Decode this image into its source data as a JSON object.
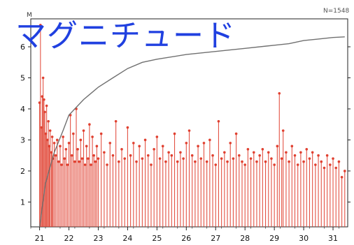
{
  "overlay_title": "マグニチュード",
  "chart_data": {
    "type": "bar",
    "n_label": "N=1548",
    "y_axis_label": "M",
    "xlim": [
      20.7,
      31.5
    ],
    "ylim": [
      0.2,
      6.9
    ],
    "x_ticks": [
      "21",
      "22",
      "23",
      "24",
      "25",
      "26",
      "27",
      "28",
      "29",
      "30",
      "31"
    ],
    "y_ticks": [
      "1",
      "2",
      "3",
      "4",
      "5",
      "6"
    ],
    "stem_color": "#e04030",
    "cumulative_color": "#707070",
    "stems": [
      [
        21.0,
        4.2
      ],
      [
        21.03,
        6.7
      ],
      [
        21.06,
        3.4
      ],
      [
        21.09,
        4.4
      ],
      [
        21.12,
        5.0
      ],
      [
        21.15,
        4.3
      ],
      [
        21.18,
        3.9
      ],
      [
        21.21,
        3.2
      ],
      [
        21.24,
        4.1
      ],
      [
        21.27,
        3.0
      ],
      [
        21.3,
        3.6
      ],
      [
        21.33,
        2.8
      ],
      [
        21.36,
        3.3
      ],
      [
        21.4,
        2.6
      ],
      [
        21.43,
        3.1
      ],
      [
        21.46,
        2.4
      ],
      [
        21.5,
        2.9
      ],
      [
        21.55,
        2.5
      ],
      [
        21.6,
        3.0
      ],
      [
        21.65,
        2.3
      ],
      [
        21.7,
        2.8
      ],
      [
        21.75,
        2.2
      ],
      [
        21.8,
        3.1
      ],
      [
        21.85,
        2.4
      ],
      [
        21.9,
        2.7
      ],
      [
        21.95,
        2.2
      ],
      [
        22.0,
        2.9
      ],
      [
        22.05,
        3.8
      ],
      [
        22.1,
        2.5
      ],
      [
        22.15,
        3.2
      ],
      [
        22.2,
        2.3
      ],
      [
        22.25,
        4.0
      ],
      [
        22.3,
        2.7
      ],
      [
        22.35,
        2.3
      ],
      [
        22.4,
        3.0
      ],
      [
        22.45,
        2.4
      ],
      [
        22.5,
        3.3
      ],
      [
        22.55,
        2.2
      ],
      [
        22.6,
        2.8
      ],
      [
        22.65,
        2.4
      ],
      [
        22.7,
        3.5
      ],
      [
        22.75,
        2.2
      ],
      [
        22.8,
        3.1
      ],
      [
        22.85,
        2.5
      ],
      [
        22.9,
        2.3
      ],
      [
        22.95,
        2.8
      ],
      [
        23.0,
        2.4
      ],
      [
        23.1,
        3.2
      ],
      [
        23.2,
        2.6
      ],
      [
        23.3,
        2.2
      ],
      [
        23.4,
        2.9
      ],
      [
        23.5,
        2.5
      ],
      [
        23.6,
        3.6
      ],
      [
        23.7,
        2.3
      ],
      [
        23.8,
        2.7
      ],
      [
        23.9,
        2.4
      ],
      [
        24.0,
        3.4
      ],
      [
        24.1,
        2.5
      ],
      [
        24.2,
        2.9
      ],
      [
        24.3,
        2.3
      ],
      [
        24.4,
        2.8
      ],
      [
        24.5,
        2.4
      ],
      [
        24.6,
        3.0
      ],
      [
        24.7,
        2.5
      ],
      [
        24.8,
        2.2
      ],
      [
        24.9,
        2.7
      ],
      [
        25.0,
        3.1
      ],
      [
        25.1,
        2.4
      ],
      [
        25.2,
        2.8
      ],
      [
        25.3,
        2.3
      ],
      [
        25.4,
        2.6
      ],
      [
        25.5,
        2.5
      ],
      [
        25.6,
        3.2
      ],
      [
        25.7,
        2.3
      ],
      [
        25.8,
        2.6
      ],
      [
        25.9,
        2.4
      ],
      [
        26.0,
        2.9
      ],
      [
        26.1,
        3.3
      ],
      [
        26.2,
        2.5
      ],
      [
        26.3,
        2.3
      ],
      [
        26.4,
        2.8
      ],
      [
        26.5,
        2.4
      ],
      [
        26.6,
        2.9
      ],
      [
        26.7,
        2.3
      ],
      [
        26.8,
        3.0
      ],
      [
        26.9,
        2.5
      ],
      [
        27.0,
        2.2
      ],
      [
        27.1,
        3.6
      ],
      [
        27.2,
        2.4
      ],
      [
        27.3,
        2.6
      ],
      [
        27.4,
        2.3
      ],
      [
        27.5,
        2.9
      ],
      [
        27.6,
        2.4
      ],
      [
        27.7,
        3.2
      ],
      [
        27.8,
        2.5
      ],
      [
        27.9,
        2.3
      ],
      [
        28.0,
        2.2
      ],
      [
        28.1,
        2.7
      ],
      [
        28.2,
        2.4
      ],
      [
        28.3,
        2.6
      ],
      [
        28.4,
        2.3
      ],
      [
        28.5,
        2.5
      ],
      [
        28.6,
        2.7
      ],
      [
        28.7,
        2.3
      ],
      [
        28.8,
        2.6
      ],
      [
        28.9,
        2.4
      ],
      [
        29.0,
        2.2
      ],
      [
        29.1,
        2.8
      ],
      [
        29.17,
        4.5
      ],
      [
        29.25,
        2.4
      ],
      [
        29.3,
        3.3
      ],
      [
        29.4,
        2.6
      ],
      [
        29.5,
        2.3
      ],
      [
        29.6,
        2.8
      ],
      [
        29.7,
        2.5
      ],
      [
        29.8,
        2.2
      ],
      [
        29.9,
        2.6
      ],
      [
        30.0,
        2.3
      ],
      [
        30.1,
        2.7
      ],
      [
        30.2,
        2.4
      ],
      [
        30.3,
        2.6
      ],
      [
        30.4,
        2.2
      ],
      [
        30.5,
        2.5
      ],
      [
        30.6,
        2.3
      ],
      [
        30.7,
        2.1
      ],
      [
        30.8,
        2.5
      ],
      [
        30.9,
        2.2
      ],
      [
        31.0,
        2.4
      ],
      [
        31.1,
        2.1
      ],
      [
        31.2,
        2.3
      ],
      [
        31.3,
        1.8
      ],
      [
        31.4,
        2.0
      ]
    ],
    "cumulative": [
      [
        21.0,
        0.2
      ],
      [
        21.2,
        1.6
      ],
      [
        21.5,
        2.6
      ],
      [
        21.8,
        3.3
      ],
      [
        22.0,
        3.8
      ],
      [
        22.5,
        4.3
      ],
      [
        23.0,
        4.7
      ],
      [
        23.5,
        5.0
      ],
      [
        24.0,
        5.3
      ],
      [
        24.5,
        5.5
      ],
      [
        25.0,
        5.6
      ],
      [
        26.0,
        5.75
      ],
      [
        27.0,
        5.85
      ],
      [
        28.0,
        5.95
      ],
      [
        29.0,
        6.05
      ],
      [
        29.5,
        6.1
      ],
      [
        30.0,
        6.2
      ],
      [
        30.5,
        6.25
      ],
      [
        31.0,
        6.3
      ],
      [
        31.4,
        6.32
      ]
    ]
  }
}
